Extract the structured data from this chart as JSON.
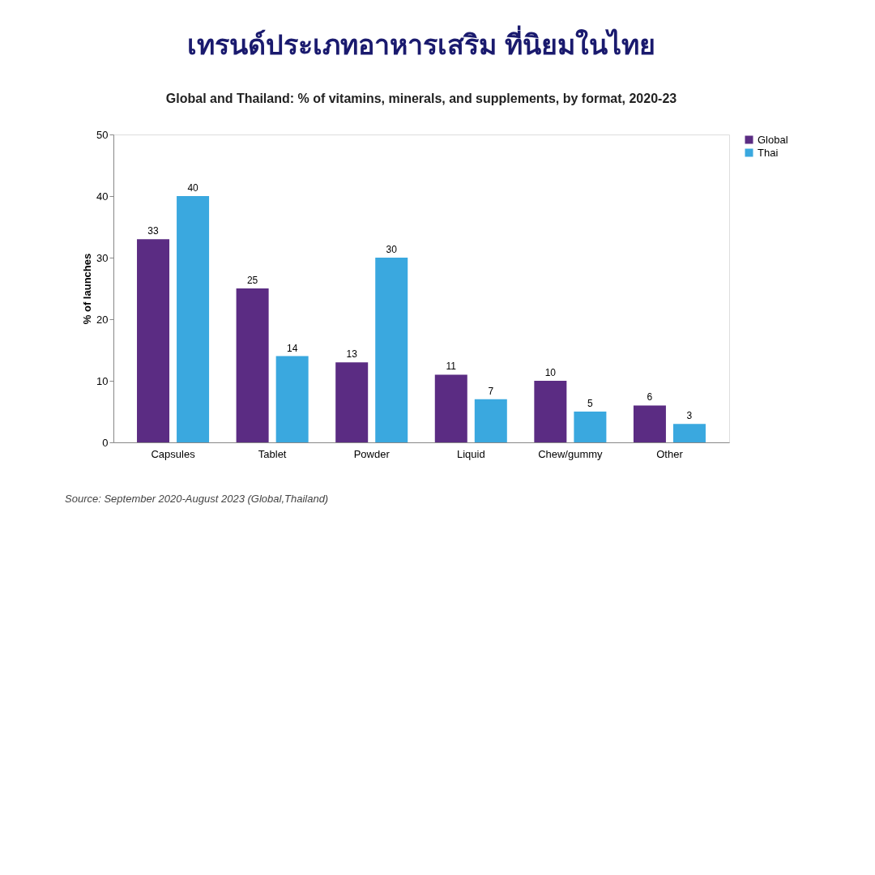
{
  "chart_data": {
    "type": "bar",
    "title": "เทรนด์ประเภทอาหารเสริม ที่นิยมในไทย",
    "subtitle": "Global and Thailand: % of vitamins, minerals, and supplements, by format, 2020-23",
    "ylabel": "% of launches",
    "categories": [
      "Capsules",
      "Tablet",
      "Powder",
      "Liquid",
      "Chew/gummy",
      "Other"
    ],
    "series": [
      {
        "name": "Global",
        "color": "#5b2c83",
        "values": [
          33,
          25,
          13,
          11,
          10,
          6
        ]
      },
      {
        "name": "Thai",
        "color": "#3aa8df",
        "values": [
          40,
          14,
          30,
          7,
          5,
          3
        ]
      }
    ],
    "ylim": [
      0,
      50
    ],
    "yticks": [
      0,
      10,
      20,
      30,
      40,
      50
    ],
    "data_labels": true,
    "grid": false,
    "legend": "right",
    "annotations": [
      "Source: September 2020-August 2023 (Global,Thailand)"
    ]
  }
}
